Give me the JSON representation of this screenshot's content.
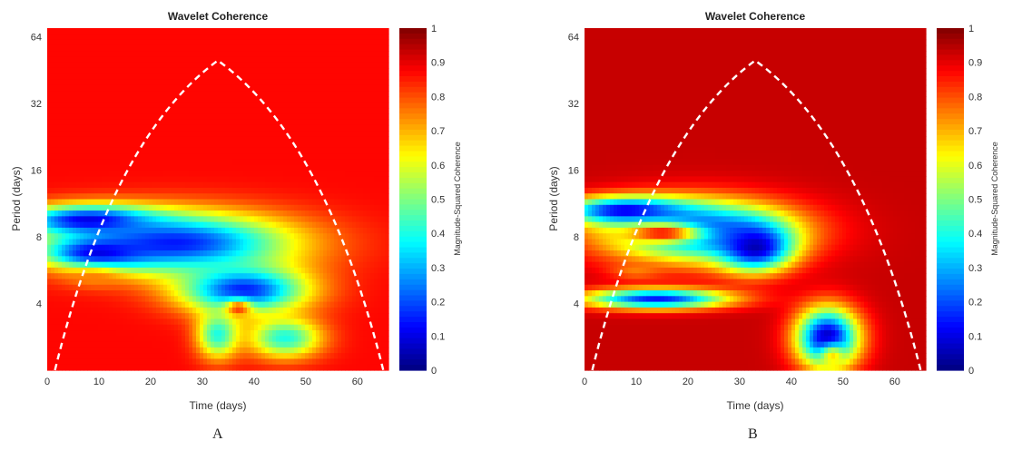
{
  "chart_data": [
    {
      "type": "heatmap",
      "panel_label": "A",
      "title": "Wavelet Coherence",
      "xlabel": "Time (days)",
      "ylabel": "Period (days)",
      "xlim": [
        0,
        66
      ],
      "ylim": [
        2,
        70
      ],
      "y_scale": "log2",
      "x_ticks": [
        0,
        10,
        20,
        30,
        40,
        50,
        60
      ],
      "y_ticks": [
        4,
        8,
        16,
        32,
        64
      ],
      "colorbar": {
        "label": "Magnitude-Squared Coherence",
        "range": [
          0,
          1
        ],
        "ticks": [
          0,
          0.1,
          0.2,
          0.3,
          0.4,
          0.5,
          0.6,
          0.7,
          0.8,
          0.9,
          1
        ]
      },
      "cone_of_influence": {
        "apex": [
          33,
          50
        ],
        "base_left": [
          1.5,
          2
        ],
        "base_right": [
          65,
          2
        ]
      },
      "background_level": 0.87,
      "regions": [
        {
          "x": 25,
          "y": 7.5,
          "sx": 22,
          "sy": 0.45,
          "level": 0.15
        },
        {
          "x": 8,
          "y": 9.5,
          "sx": 13,
          "sy": 0.22,
          "level": 0.1
        },
        {
          "x": 10,
          "y": 6.8,
          "sx": 10,
          "sy": 0.22,
          "level": 0.1
        },
        {
          "x": 38,
          "y": 4.6,
          "sx": 12,
          "sy": 0.35,
          "level": 0.15
        },
        {
          "x": 46,
          "y": 2.8,
          "sx": 7,
          "sy": 0.3,
          "level": 0.4
        },
        {
          "x": 33,
          "y": 2.9,
          "sx": 4,
          "sy": 0.35,
          "level": 0.4
        },
        {
          "x": 9,
          "y": 5.2,
          "sx": 5,
          "sy": 0.14,
          "level": 0.75
        },
        {
          "x": 37,
          "y": 3.8,
          "sx": 2.5,
          "sy": 0.12,
          "level": 0.82
        }
      ]
    },
    {
      "type": "heatmap",
      "panel_label": "B",
      "title": "Wavelet Coherence",
      "xlabel": "Time (days)",
      "ylabel": "Period (days)",
      "xlim": [
        0,
        66
      ],
      "ylim": [
        2,
        70
      ],
      "y_scale": "log2",
      "x_ticks": [
        0,
        10,
        20,
        30,
        40,
        50,
        60
      ],
      "y_ticks": [
        4,
        8,
        16,
        32,
        64
      ],
      "colorbar": {
        "label": "Magnitude-Squared Coherence",
        "range": [
          0,
          1
        ],
        "ticks": [
          0,
          0.1,
          0.2,
          0.3,
          0.4,
          0.5,
          0.6,
          0.7,
          0.8,
          0.9,
          1
        ]
      },
      "cone_of_influence": {
        "apex": [
          33,
          50
        ],
        "base_left": [
          1.5,
          2
        ],
        "base_right": [
          65,
          2
        ]
      },
      "background_level": 0.93,
      "regions": [
        {
          "x": 22,
          "y": 8.5,
          "sx": 18,
          "sy": 0.45,
          "level": 0.15
        },
        {
          "x": 8,
          "y": 10.5,
          "sx": 12,
          "sy": 0.2,
          "level": 0.1
        },
        {
          "x": 33,
          "y": 7.2,
          "sx": 7,
          "sy": 0.35,
          "level": 0.05
        },
        {
          "x": 47,
          "y": 2.8,
          "sx": 6,
          "sy": 0.45,
          "level": 0.05
        },
        {
          "x": 14,
          "y": 4.2,
          "sx": 14,
          "sy": 0.15,
          "level": 0.15
        },
        {
          "x": 15,
          "y": 8.3,
          "sx": 8,
          "sy": 0.15,
          "level": 0.88
        },
        {
          "x": 10,
          "y": 5.6,
          "sx": 5,
          "sy": 0.12,
          "level": 0.75
        },
        {
          "x": 48,
          "y": 2.3,
          "sx": 2.5,
          "sy": 0.18,
          "level": 0.65
        }
      ]
    }
  ]
}
